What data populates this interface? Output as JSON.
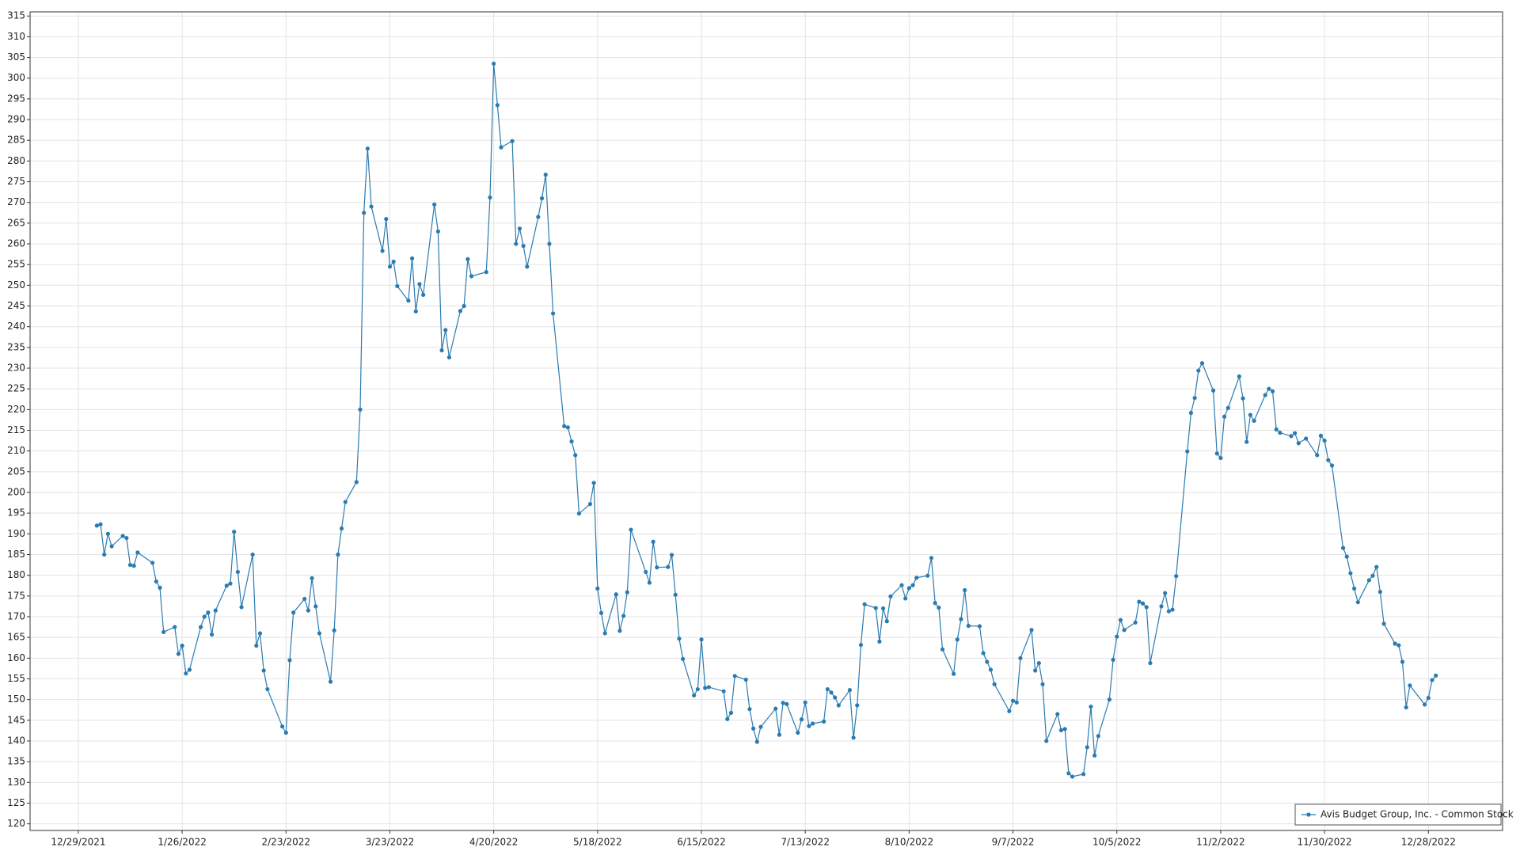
{
  "chart_data": {
    "type": "line",
    "legend": "lower right",
    "grid": true,
    "xlim": [
      "12/16/2021",
      "1/17/2023"
    ],
    "xticks": [
      "12/29/2021",
      "1/26/2022",
      "2/23/2022",
      "3/23/2022",
      "4/20/2022",
      "5/18/2022",
      "6/15/2022",
      "7/13/2022",
      "8/10/2022",
      "9/7/2022",
      "10/5/2022",
      "11/2/2022",
      "11/30/2022",
      "12/28/2022"
    ],
    "ylim": [
      118.4,
      316
    ],
    "yticks": [
      120,
      125,
      130,
      135,
      140,
      145,
      150,
      155,
      160,
      165,
      170,
      175,
      180,
      185,
      190,
      195,
      200,
      205,
      210,
      215,
      220,
      225,
      230,
      235,
      240,
      245,
      250,
      255,
      260,
      265,
      270,
      275,
      280,
      285,
      290,
      295,
      300,
      305,
      310,
      315
    ],
    "x": [
      "1/3/2022",
      "1/4/2022",
      "1/5/2022",
      "1/6/2022",
      "1/7/2022",
      "1/10/2022",
      "1/11/2022",
      "1/12/2022",
      "1/13/2022",
      "1/14/2022",
      "1/18/2022",
      "1/19/2022",
      "1/20/2022",
      "1/21/2022",
      "1/24/2022",
      "1/25/2022",
      "1/26/2022",
      "1/27/2022",
      "1/28/2022",
      "1/31/2022",
      "2/1/2022",
      "2/2/2022",
      "2/3/2022",
      "2/4/2022",
      "2/7/2022",
      "2/8/2022",
      "2/9/2022",
      "2/10/2022",
      "2/11/2022",
      "2/14/2022",
      "2/15/2022",
      "2/16/2022",
      "2/17/2022",
      "2/18/2022",
      "2/22/2022",
      "2/23/2022",
      "2/24/2022",
      "2/25/2022",
      "2/28/2022",
      "3/1/2022",
      "3/2/2022",
      "3/3/2022",
      "3/4/2022",
      "3/7/2022",
      "3/8/2022",
      "3/9/2022",
      "3/10/2022",
      "3/11/2022",
      "3/14/2022",
      "3/15/2022",
      "3/16/2022",
      "3/17/2022",
      "3/18/2022",
      "3/21/2022",
      "3/22/2022",
      "3/23/2022",
      "3/24/2022",
      "3/25/2022",
      "3/28/2022",
      "3/29/2022",
      "3/30/2022",
      "3/31/2022",
      "4/1/2022",
      "4/4/2022",
      "4/5/2022",
      "4/6/2022",
      "4/7/2022",
      "4/8/2022",
      "4/11/2022",
      "4/12/2022",
      "4/13/2022",
      "4/14/2022",
      "4/18/2022",
      "4/19/2022",
      "4/20/2022",
      "4/21/2022",
      "4/22/2022",
      "4/25/2022",
      "4/26/2022",
      "4/27/2022",
      "4/28/2022",
      "4/29/2022",
      "5/2/2022",
      "5/3/2022",
      "5/4/2022",
      "5/5/2022",
      "5/6/2022",
      "5/9/2022",
      "5/10/2022",
      "5/11/2022",
      "5/12/2022",
      "5/13/2022",
      "5/16/2022",
      "5/17/2022",
      "5/18/2022",
      "5/19/2022",
      "5/20/2022",
      "5/23/2022",
      "5/24/2022",
      "5/25/2022",
      "5/26/2022",
      "5/27/2022",
      "5/31/2022",
      "6/1/2022",
      "6/2/2022",
      "6/3/2022",
      "6/6/2022",
      "6/7/2022",
      "6/8/2022",
      "6/9/2022",
      "6/10/2022",
      "6/13/2022",
      "6/14/2022",
      "6/15/2022",
      "6/16/2022",
      "6/17/2022",
      "6/21/2022",
      "6/22/2022",
      "6/23/2022",
      "6/24/2022",
      "6/27/2022",
      "6/28/2022",
      "6/29/2022",
      "6/30/2022",
      "7/1/2022",
      "7/5/2022",
      "7/6/2022",
      "7/7/2022",
      "7/8/2022",
      "7/11/2022",
      "7/12/2022",
      "7/13/2022",
      "7/14/2022",
      "7/15/2022",
      "7/18/2022",
      "7/19/2022",
      "7/20/2022",
      "7/21/2022",
      "7/22/2022",
      "7/25/2022",
      "7/26/2022",
      "7/27/2022",
      "7/28/2022",
      "7/29/2022",
      "8/1/2022",
      "8/2/2022",
      "8/3/2022",
      "8/4/2022",
      "8/5/2022",
      "8/8/2022",
      "8/9/2022",
      "8/10/2022",
      "8/11/2022",
      "8/12/2022",
      "8/15/2022",
      "8/16/2022",
      "8/17/2022",
      "8/18/2022",
      "8/19/2022",
      "8/22/2022",
      "8/23/2022",
      "8/24/2022",
      "8/25/2022",
      "8/26/2022",
      "8/29/2022",
      "8/30/2022",
      "8/31/2022",
      "9/1/2022",
      "9/2/2022",
      "9/6/2022",
      "9/7/2022",
      "9/8/2022",
      "9/9/2022",
      "9/12/2022",
      "9/13/2022",
      "9/14/2022",
      "9/15/2022",
      "9/16/2022",
      "9/19/2022",
      "9/20/2022",
      "9/21/2022",
      "9/22/2022",
      "9/23/2022",
      "9/26/2022",
      "9/27/2022",
      "9/28/2022",
      "9/29/2022",
      "9/30/2022",
      "10/3/2022",
      "10/4/2022",
      "10/5/2022",
      "10/6/2022",
      "10/7/2022",
      "10/10/2022",
      "10/11/2022",
      "10/12/2022",
      "10/13/2022",
      "10/14/2022",
      "10/17/2022",
      "10/18/2022",
      "10/19/2022",
      "10/20/2022",
      "10/21/2022",
      "10/24/2022",
      "10/25/2022",
      "10/26/2022",
      "10/27/2022",
      "10/28/2022",
      "10/31/2022",
      "11/1/2022",
      "11/2/2022",
      "11/3/2022",
      "11/4/2022",
      "11/7/2022",
      "11/8/2022",
      "11/9/2022",
      "11/10/2022",
      "11/11/2022",
      "11/14/2022",
      "11/15/2022",
      "11/16/2022",
      "11/17/2022",
      "11/18/2022",
      "11/21/2022",
      "11/22/2022",
      "11/23/2022",
      "11/25/2022",
      "11/28/2022",
      "11/29/2022",
      "11/30/2022",
      "12/1/2022",
      "12/2/2022",
      "12/5/2022",
      "12/6/2022",
      "12/7/2022",
      "12/8/2022",
      "12/9/2022",
      "12/12/2022",
      "12/13/2022",
      "12/14/2022",
      "12/15/2022",
      "12/16/2022",
      "12/19/2022",
      "12/20/2022",
      "12/21/2022",
      "12/22/2022",
      "12/23/2022",
      "12/27/2022",
      "12/28/2022",
      "12/29/2022",
      "12/30/2022"
    ],
    "series": [
      {
        "name": "Avis Budget Group, Inc. - Common Stock",
        "color": "#2b7bb0",
        "values": [
          192,
          192.3,
          185,
          190,
          187,
          189.5,
          189,
          182.5,
          182.3,
          185.5,
          183,
          178.5,
          177,
          166.3,
          167.5,
          161,
          163,
          156.3,
          157.2,
          167.5,
          170,
          171,
          165.7,
          171.5,
          177.5,
          178,
          190.5,
          180.8,
          172.3,
          185,
          163,
          166,
          157,
          152.5,
          143.5,
          142,
          159.5,
          171,
          174.3,
          171.5,
          179.3,
          172.5,
          166,
          154.3,
          166.7,
          185,
          191.3,
          197.7,
          202.5,
          220,
          267.5,
          283,
          269,
          258.3,
          266,
          254.5,
          255.7,
          249.8,
          246.3,
          256.5,
          243.7,
          250.3,
          247.7,
          269.5,
          263,
          234.3,
          239.2,
          232.6,
          243.8,
          245,
          256.3,
          252.2,
          253.2,
          271.2,
          303.5,
          293.5,
          283.3,
          284.8,
          260,
          263.7,
          259.5,
          254.5,
          266.5,
          271,
          276.7,
          260,
          243.2,
          216,
          215.7,
          212.3,
          209,
          194.9,
          197.2,
          202.3,
          176.8,
          170.9,
          166,
          175.4,
          166.6,
          170.2,
          175.9,
          191,
          180.8,
          178.2,
          188.1,
          181.9,
          182,
          184.9,
          175.3,
          164.7,
          159.8,
          151,
          152.5,
          164.5,
          152.8,
          153,
          152,
          145.3,
          146.8,
          155.7,
          154.8,
          147.7,
          143,
          139.8,
          143.4,
          147.8,
          141.5,
          149.2,
          148.9,
          142,
          145.2,
          149.3,
          143.6,
          144.2,
          144.7,
          152.5,
          151.7,
          150.5,
          148.6,
          152.3,
          140.8,
          148.6,
          163.2,
          173,
          172.1,
          164,
          172,
          168.9,
          174.9,
          177.6,
          174.4,
          176.9,
          177.6,
          179.4,
          179.9,
          184.2,
          173.3,
          172.2,
          162.1,
          156.2,
          164.5,
          169.4,
          176.4,
          167.8,
          167.7,
          161.2,
          159.1,
          157.2,
          153.7,
          147.2,
          149.7,
          149.3,
          160,
          166.8,
          157,
          158.8,
          153.7,
          140,
          146.5,
          142.6,
          142.9,
          132.2,
          131.4,
          132,
          138.5,
          148.3,
          136.5,
          141.2,
          150,
          159.6,
          165.2,
          169.2,
          166.8,
          168.6,
          173.6,
          173.2,
          172.3,
          158.8,
          172.5,
          175.7,
          171.3,
          171.7,
          179.8,
          209.9,
          219.2,
          222.8,
          229.4,
          231.2,
          224.6,
          209.4,
          208.3,
          218.3,
          220.4,
          228,
          222.7,
          212.2,
          218.7,
          217.3,
          223.5,
          225,
          224.4,
          215.2,
          214.4,
          213.6,
          214.3,
          211.9,
          213,
          209,
          213.7,
          212.5,
          207.8,
          206.5,
          186.6,
          184.5,
          180.5,
          176.8,
          173.5,
          178.8,
          179.9,
          182,
          176,
          168.3,
          163.5,
          163.1,
          159.1,
          148.1,
          153.4,
          148.8,
          150.4,
          154.7,
          155.8
        ]
      }
    ]
  }
}
